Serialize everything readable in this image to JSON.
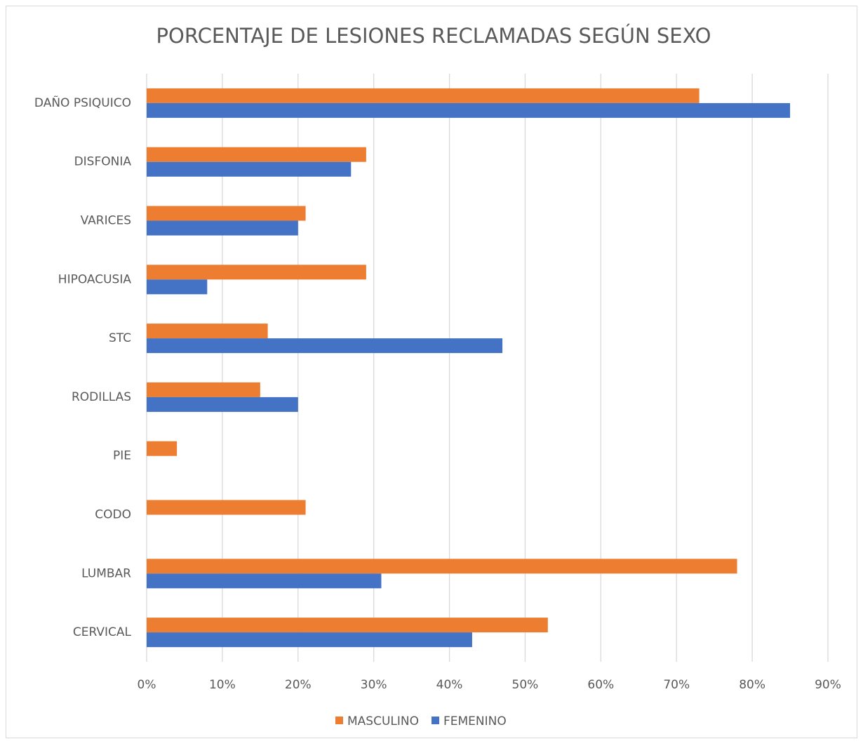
{
  "chart_data": {
    "type": "hbar",
    "title": "PORCENTAJE DE LESIONES RECLAMADAS SEGÚN SEXO",
    "categories": [
      "DAÑO PSIQUICO",
      "DISFONIA",
      "VARICES",
      "HIPOACUSIA",
      "STC",
      "RODILLAS",
      "PIE",
      "CODO",
      "LUMBAR",
      "CERVICAL"
    ],
    "series": [
      {
        "name": "MASCULINO",
        "color": "#ED7D31",
        "values": [
          73,
          29,
          21,
          29,
          16,
          15,
          4,
          21,
          78,
          53
        ]
      },
      {
        "name": "FEMENINO",
        "color": "#4472C4",
        "values": [
          85,
          27,
          20,
          8,
          47,
          20,
          0,
          0,
          31,
          43
        ]
      }
    ],
    "xlim": [
      0,
      90
    ],
    "xticks": [
      {
        "value": 0,
        "label": "0%"
      },
      {
        "value": 10,
        "label": "10%"
      },
      {
        "value": 20,
        "label": "20%"
      },
      {
        "value": 30,
        "label": "30%"
      },
      {
        "value": 40,
        "label": "40%"
      },
      {
        "value": 50,
        "label": "50%"
      },
      {
        "value": 60,
        "label": "60%"
      },
      {
        "value": 70,
        "label": "70%"
      },
      {
        "value": 80,
        "label": "80%"
      },
      {
        "value": 90,
        "label": "90%"
      }
    ],
    "grid": true,
    "legend": "bottom"
  }
}
